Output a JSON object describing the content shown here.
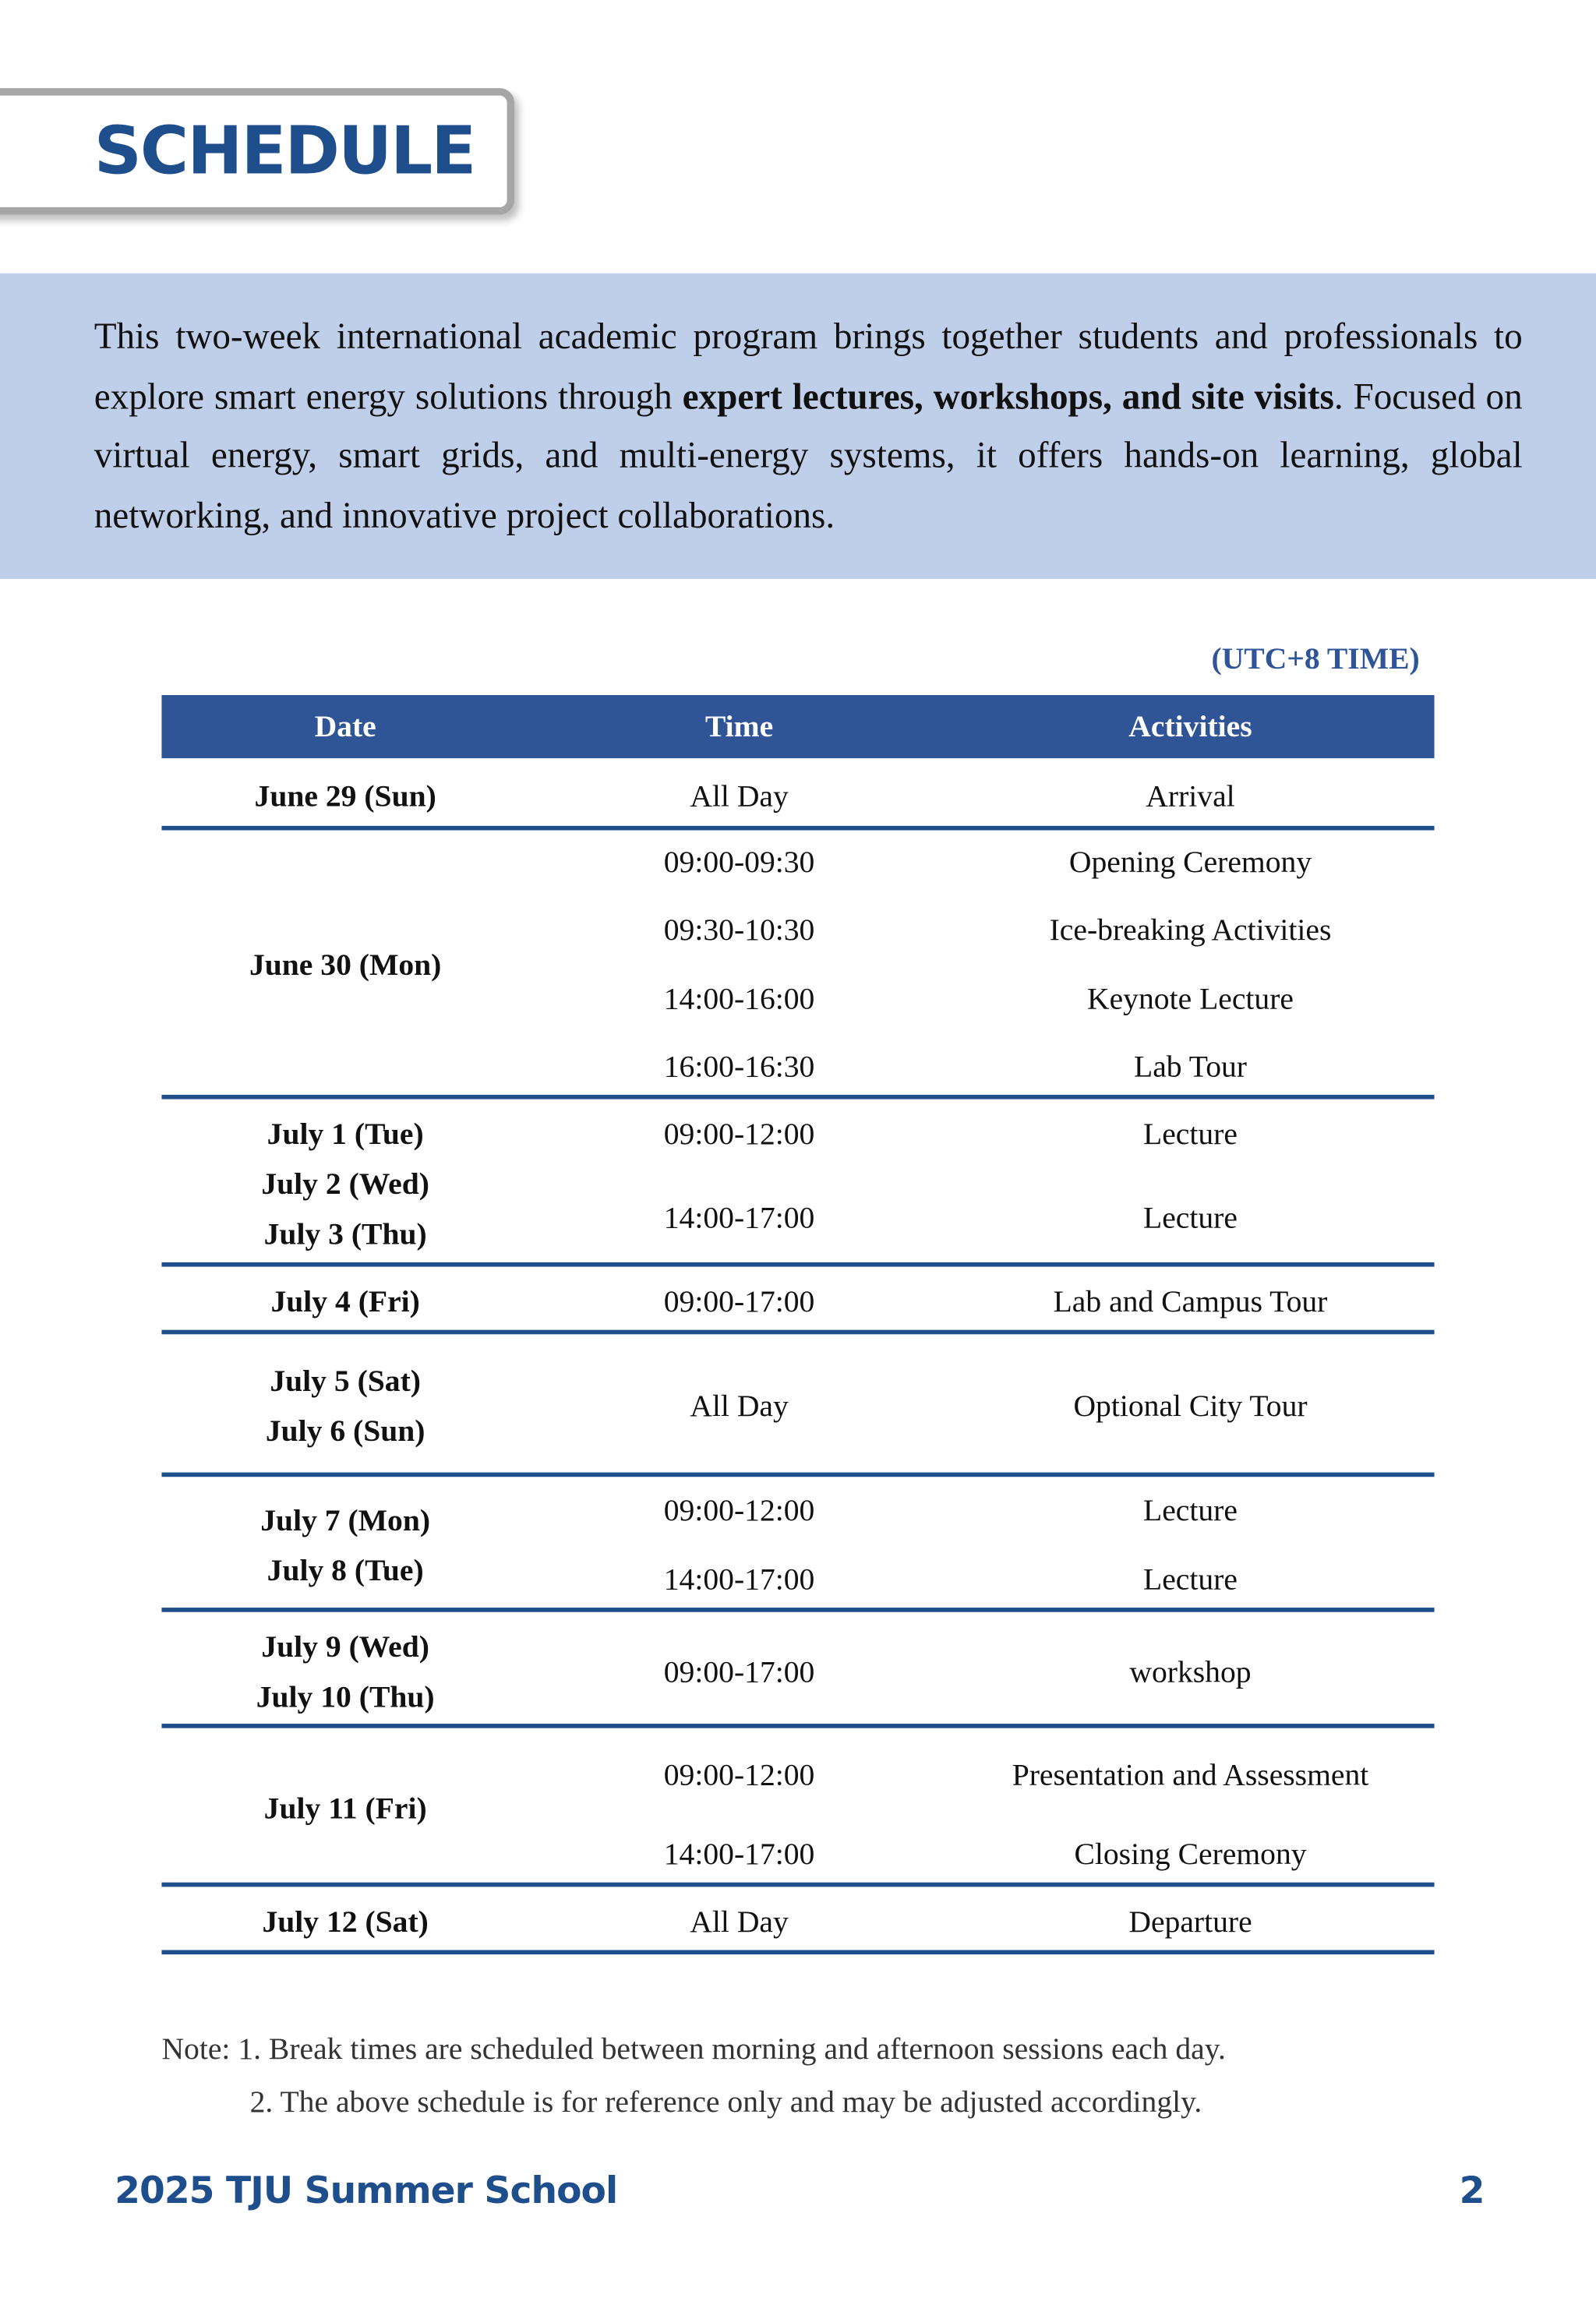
{
  "title": "SCHEDULE",
  "intro": {
    "part1": "This two-week international academic program brings together students and professionals to explore smart energy solutions through ",
    "bold": "expert lectures, workshops, and site visits",
    "part2": ". Focused on virtual energy, smart grids, and multi-energy systems, it offers hands-on learning, global networking, and innovative project collaborations."
  },
  "timezone": "(UTC+8 TIME)",
  "table": {
    "headers": [
      "Date",
      "Time",
      "Activities"
    ],
    "rows": [
      {
        "dates": [
          "June 29 (Sun)"
        ],
        "times": [
          "All Day"
        ],
        "activities": [
          "Arrival"
        ]
      },
      {
        "dates": [
          "June 30 (Mon)"
        ],
        "times": [
          "09:00-09:30",
          "09:30-10:30",
          "14:00-16:00",
          "16:00-16:30"
        ],
        "activities": [
          "Opening Ceremony",
          "Ice-breaking Activities",
          "Keynote Lecture",
          "Lab Tour"
        ]
      },
      {
        "dates": [
          "July 1 (Tue)",
          "July 2 (Wed)",
          "July 3 (Thu)"
        ],
        "times": [
          "09:00-12:00",
          "14:00-17:00"
        ],
        "activities": [
          "Lecture",
          "Lecture"
        ]
      },
      {
        "dates": [
          "July 4 (Fri)"
        ],
        "times": [
          "09:00-17:00"
        ],
        "activities": [
          "Lab and Campus Tour"
        ]
      },
      {
        "dates": [
          "July 5 (Sat)",
          "July 6 (Sun)"
        ],
        "times": [
          "All Day"
        ],
        "activities": [
          "Optional City Tour"
        ]
      },
      {
        "dates": [
          "July 7 (Mon)",
          "July 8 (Tue)"
        ],
        "times": [
          "09:00-12:00",
          "14:00-17:00"
        ],
        "activities": [
          "Lecture",
          "Lecture"
        ]
      },
      {
        "dates": [
          "July 9 (Wed)",
          "July 10 (Thu)"
        ],
        "times": [
          "09:00-17:00"
        ],
        "activities": [
          "workshop"
        ]
      },
      {
        "dates": [
          "July 11 (Fri)"
        ],
        "times": [
          "09:00-12:00",
          "14:00-17:00"
        ],
        "activities": [
          "Presentation and Assessment",
          "Closing Ceremony"
        ]
      },
      {
        "dates": [
          "July 12 (Sat)"
        ],
        "times": [
          "All Day"
        ],
        "activities": [
          "Departure"
        ]
      }
    ]
  },
  "notes": [
    "Note: 1. Break times are scheduled between morning and afternoon sessions each day.",
    "2. The above schedule is for reference only and may be adjusted accordingly."
  ],
  "footer": {
    "left": "2025 TJU Summer School",
    "page": "2"
  },
  "colors": {
    "brand_blue": "#1f4e8c",
    "header_blue": "#2f5597",
    "band": "#c0cfe9"
  }
}
